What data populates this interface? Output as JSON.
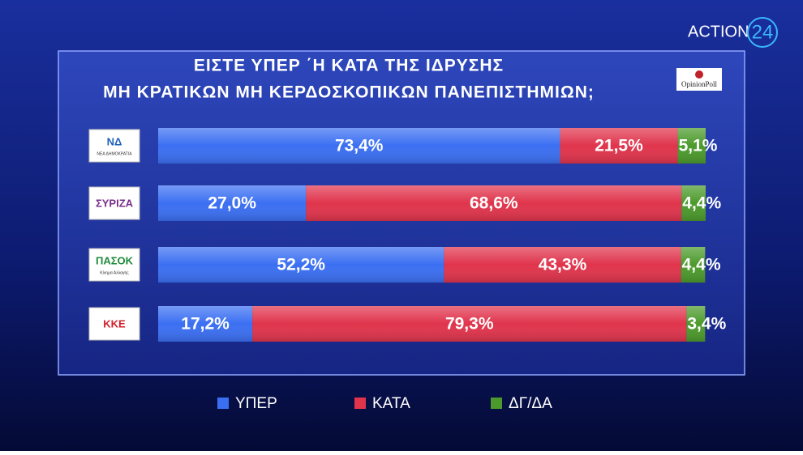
{
  "chart_data": {
    "type": "stacked-bar",
    "title": [
      "ΕΙΣΤΕ ΥΠΕΡ ΄Η ΚΑΤΑ ΤΗΣ ΙΔΡΥΣΗΣ",
      "ΜΗ ΚΡΑΤΙΚΩΝ ΜΗ ΚΕΡΔΟΣΚΟΠΙΚΩΝ ΠΑΝΕΠΙΣΤΗΜΙΩΝ;"
    ],
    "source": "OpinionPoll",
    "brand": "ACTION",
    "brand_number": "24",
    "categories": [
      "ΝΔ",
      "ΣΥΡΙΖΑ",
      "ΠΑΣΟΚ",
      "ΚΚΕ"
    ],
    "category_subtitles": [
      "ΝΕΑ ΔΗΜΟΚΡΑΤΙΑ",
      null,
      "Κίνημα Αλλαγής",
      null
    ],
    "category_colors": [
      "#1d5fb8",
      "#7a2e8c",
      "#1f8a3a",
      "#d0202a"
    ],
    "xlim": [
      0,
      100
    ],
    "series": [
      {
        "name": "ΥΠΕΡ",
        "color": "#3b6ff2",
        "values": [
          73.4,
          27.0,
          52.2,
          17.2
        ],
        "value_labels": [
          "73,4%",
          "27,0%",
          "52,2%",
          "17,2%"
        ]
      },
      {
        "name": "ΚΑΤΑ",
        "color": "#e0344c",
        "values": [
          21.5,
          68.6,
          43.3,
          79.3
        ],
        "value_labels": [
          "21,5%",
          "68,6%",
          "43,3%",
          "79,3%"
        ]
      },
      {
        "name": "ΔΓ/ΔΑ",
        "color": "#4c9a2c",
        "values": [
          5.1,
          4.4,
          4.4,
          3.4
        ],
        "value_labels": [
          "5,1%",
          "4,4%",
          "4,4%",
          "3,4%"
        ]
      }
    ]
  }
}
